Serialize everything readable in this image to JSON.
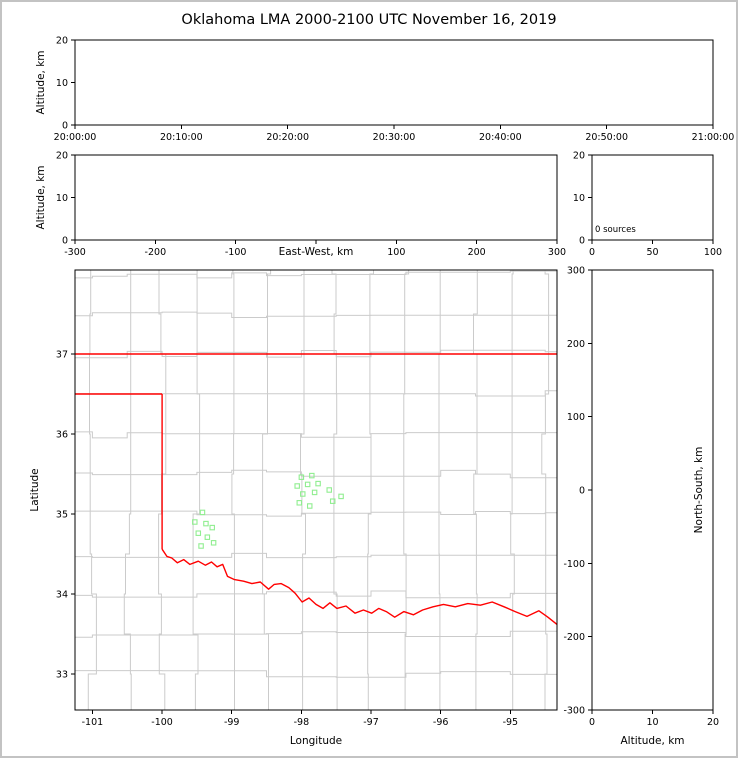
{
  "title": "Oklahoma LMA 2000-2100 UTC November 16, 2019",
  "colors": {
    "frame": "#c3c3c3",
    "axis": "#000000",
    "county": "#cbcbcb",
    "state": "#ff0000",
    "station": "#90ee90"
  },
  "chart_data": [
    {
      "id": "time_height",
      "type": "scatter",
      "title": "",
      "xlabel": "",
      "ylabel": "Altitude, km",
      "xticklabels": [
        "20:00:00",
        "20:10:00",
        "20:20:00",
        "20:30:00",
        "20:40:00",
        "20:50:00",
        "21:00:00"
      ],
      "yticks": [
        0,
        10,
        20
      ],
      "yticklabels": [
        "0",
        "10",
        "20"
      ],
      "ylim": [
        0,
        20
      ],
      "points": []
    },
    {
      "id": "ew_height",
      "type": "scatter",
      "xlabel": "East-West, km",
      "ylabel": "Altitude, km",
      "xticks": [
        -300,
        -200,
        -100,
        0,
        100,
        200,
        300
      ],
      "xticklabels": [
        "-300",
        "-200",
        "-100",
        "",
        "100",
        "200",
        "300"
      ],
      "xlim": [
        -300,
        300
      ],
      "yticks": [
        0,
        10,
        20
      ],
      "yticklabels": [
        "0",
        "10",
        "20"
      ],
      "ylim": [
        0,
        20
      ],
      "points": []
    },
    {
      "id": "source_histogram",
      "type": "line",
      "annotation": "0 sources",
      "xticks": [
        0,
        50,
        100
      ],
      "xticklabels": [
        "0",
        "50",
        "100"
      ],
      "xlim": [
        0,
        100
      ],
      "yticks": [
        0,
        10,
        20
      ],
      "yticklabels": [
        "0",
        "10",
        "20"
      ],
      "ylim": [
        0,
        20
      ],
      "points": []
    },
    {
      "id": "map",
      "type": "scatter",
      "xlabel": "Longitude",
      "ylabel": "Latitude",
      "xticks": [
        -101,
        -100,
        -99,
        -98,
        -97,
        -96,
        -95
      ],
      "xticklabels": [
        "-101",
        "-100",
        "-99",
        "-98",
        "-97",
        "-96",
        "-95"
      ],
      "xlim": [
        -101.25,
        -94.33
      ],
      "yticks": [
        33,
        34,
        35,
        36,
        37
      ],
      "yticklabels": [
        "33",
        "34",
        "35",
        "36",
        "37"
      ],
      "ylim": [
        32.55,
        38.05
      ],
      "stations": [
        [
          -99.42,
          35.02
        ],
        [
          -99.53,
          34.9
        ],
        [
          -99.37,
          34.88
        ],
        [
          -99.28,
          34.83
        ],
        [
          -99.48,
          34.76
        ],
        [
          -99.35,
          34.71
        ],
        [
          -99.44,
          34.6
        ],
        [
          -99.26,
          34.64
        ],
        [
          -98.0,
          35.46
        ],
        [
          -97.85,
          35.48
        ],
        [
          -98.06,
          35.35
        ],
        [
          -97.91,
          35.37
        ],
        [
          -97.76,
          35.38
        ],
        [
          -97.98,
          35.25
        ],
        [
          -97.81,
          35.27
        ],
        [
          -97.6,
          35.3
        ],
        [
          -98.03,
          35.14
        ],
        [
          -97.88,
          35.1
        ],
        [
          -97.55,
          35.16
        ],
        [
          -97.43,
          35.22
        ]
      ],
      "borders": [
        {
          "name": "oklahoma-kansas",
          "points": [
            [
              -101.25,
              37.0
            ],
            [
              -94.33,
              37.0
            ]
          ]
        },
        {
          "name": "panhandle-south",
          "points": [
            [
              -101.25,
              36.5
            ],
            [
              -100.0,
              36.5
            ]
          ]
        },
        {
          "name": "oklahoma-texas-west",
          "points": [
            [
              -100.0,
              36.5
            ],
            [
              -100.0,
              34.56
            ]
          ]
        },
        {
          "name": "red-river",
          "points": [
            [
              -100.0,
              34.56
            ],
            [
              -99.93,
              34.47
            ],
            [
              -99.86,
              34.45
            ],
            [
              -99.78,
              34.39
            ],
            [
              -99.69,
              34.43
            ],
            [
              -99.6,
              34.37
            ],
            [
              -99.48,
              34.41
            ],
            [
              -99.38,
              34.36
            ],
            [
              -99.29,
              34.4
            ],
            [
              -99.21,
              34.34
            ],
            [
              -99.13,
              34.37
            ],
            [
              -99.06,
              34.22
            ],
            [
              -98.96,
              34.18
            ],
            [
              -98.83,
              34.16
            ],
            [
              -98.71,
              34.13
            ],
            [
              -98.59,
              34.15
            ],
            [
              -98.47,
              34.06
            ],
            [
              -98.39,
              34.12
            ],
            [
              -98.29,
              34.13
            ],
            [
              -98.18,
              34.08
            ],
            [
              -98.09,
              34.01
            ],
            [
              -97.99,
              33.9
            ],
            [
              -97.89,
              33.95
            ],
            [
              -97.79,
              33.87
            ],
            [
              -97.69,
              33.82
            ],
            [
              -97.59,
              33.89
            ],
            [
              -97.49,
              33.82
            ],
            [
              -97.36,
              33.85
            ],
            [
              -97.23,
              33.76
            ],
            [
              -97.11,
              33.8
            ],
            [
              -96.99,
              33.76
            ],
            [
              -96.89,
              33.82
            ],
            [
              -96.78,
              33.78
            ],
            [
              -96.66,
              33.71
            ],
            [
              -96.53,
              33.78
            ],
            [
              -96.39,
              33.74
            ],
            [
              -96.26,
              33.8
            ],
            [
              -96.11,
              33.84
            ],
            [
              -95.96,
              33.87
            ],
            [
              -95.79,
              33.84
            ],
            [
              -95.61,
              33.88
            ],
            [
              -95.43,
              33.86
            ],
            [
              -95.26,
              33.9
            ],
            [
              -95.09,
              33.84
            ],
            [
              -94.93,
              33.78
            ],
            [
              -94.76,
              33.72
            ],
            [
              -94.59,
              33.79
            ],
            [
              -94.46,
              33.71
            ],
            [
              -94.33,
              33.62
            ]
          ]
        }
      ]
    },
    {
      "id": "ns_height",
      "type": "scatter",
      "xlabel": "Altitude, km",
      "ylabel": "North-South, km",
      "xticks": [
        0,
        10,
        20
      ],
      "xticklabels": [
        "0",
        "10",
        "20"
      ],
      "xlim": [
        0,
        20
      ],
      "yticks": [
        300,
        200,
        100,
        0,
        -100,
        -200,
        -300
      ],
      "yticklabels": [
        "300",
        "200",
        "100",
        "0",
        "-100",
        "-200",
        "-300"
      ],
      "ylim": [
        -300,
        300
      ],
      "points": []
    }
  ]
}
